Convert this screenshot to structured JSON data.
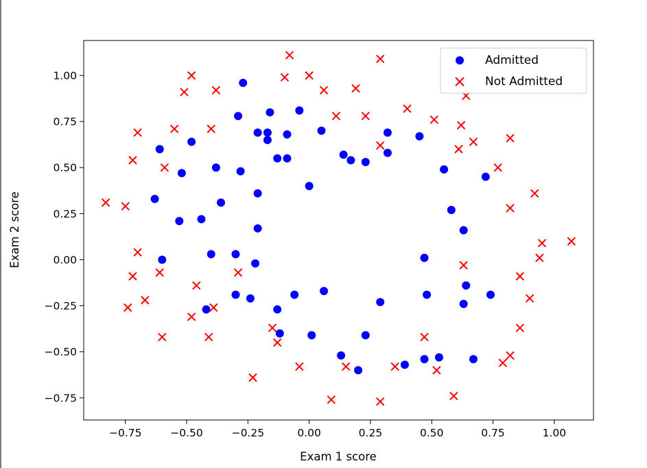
{
  "chart_data": {
    "type": "scatter",
    "title": "",
    "xlabel": "Exam 1 score",
    "ylabel": "Exam 2 score",
    "xlim": [
      -0.92,
      1.16
    ],
    "ylim": [
      -0.87,
      1.19
    ],
    "xticks": [
      -0.75,
      -0.5,
      -0.25,
      0.0,
      0.25,
      0.5,
      0.75,
      1.0
    ],
    "xtick_labels": [
      "−0.75",
      "−0.50",
      "−0.25",
      "0.00",
      "0.25",
      "0.50",
      "0.75",
      "1.00"
    ],
    "yticks": [
      -0.75,
      -0.5,
      -0.25,
      0.0,
      0.25,
      0.5,
      0.75,
      1.0
    ],
    "ytick_labels": [
      "−0.75",
      "−0.50",
      "−0.25",
      "0.00",
      "0.25",
      "0.50",
      "0.75",
      "1.00"
    ],
    "grid": false,
    "legend": "top-right",
    "series": [
      {
        "name": "Admitted",
        "marker": "circle",
        "color": "#0000ff",
        "points": [
          [
            -0.27,
            0.96
          ],
          [
            -0.29,
            0.78
          ],
          [
            -0.16,
            0.8
          ],
          [
            -0.21,
            0.69
          ],
          [
            -0.17,
            0.69
          ],
          [
            -0.09,
            0.68
          ],
          [
            -0.17,
            0.65
          ],
          [
            -0.04,
            0.81
          ],
          [
            0.05,
            0.7
          ],
          [
            -0.61,
            0.6
          ],
          [
            -0.48,
            0.64
          ],
          [
            -0.38,
            0.5
          ],
          [
            -0.28,
            0.48
          ],
          [
            -0.13,
            0.55
          ],
          [
            -0.09,
            0.55
          ],
          [
            0.14,
            0.57
          ],
          [
            0.17,
            0.54
          ],
          [
            0.23,
            0.53
          ],
          [
            0.32,
            0.69
          ],
          [
            0.32,
            0.58
          ],
          [
            0.45,
            0.67
          ],
          [
            0.55,
            0.49
          ],
          [
            0.72,
            0.45
          ],
          [
            -0.52,
            0.47
          ],
          [
            0.0,
            0.4
          ],
          [
            -0.63,
            0.33
          ],
          [
            -0.21,
            0.36
          ],
          [
            -0.36,
            0.31
          ],
          [
            -0.53,
            0.21
          ],
          [
            -0.44,
            0.22
          ],
          [
            -0.21,
            0.17
          ],
          [
            0.58,
            0.27
          ],
          [
            0.63,
            0.16
          ],
          [
            -0.6,
            0.0
          ],
          [
            -0.4,
            0.03
          ],
          [
            -0.3,
            0.03
          ],
          [
            -0.22,
            -0.02
          ],
          [
            0.47,
            0.01
          ],
          [
            0.64,
            -0.14
          ],
          [
            0.74,
            -0.19
          ],
          [
            -0.3,
            -0.19
          ],
          [
            -0.24,
            -0.21
          ],
          [
            -0.06,
            -0.19
          ],
          [
            0.06,
            -0.17
          ],
          [
            0.48,
            -0.19
          ],
          [
            0.29,
            -0.23
          ],
          [
            0.63,
            -0.24
          ],
          [
            -0.42,
            -0.27
          ],
          [
            -0.13,
            -0.27
          ],
          [
            -0.12,
            -0.4
          ],
          [
            0.01,
            -0.41
          ],
          [
            0.23,
            -0.41
          ],
          [
            0.13,
            -0.52
          ],
          [
            0.2,
            -0.6
          ],
          [
            0.39,
            -0.57
          ],
          [
            0.47,
            -0.54
          ],
          [
            0.53,
            -0.53
          ],
          [
            0.67,
            -0.54
          ]
        ]
      },
      {
        "name": "Not Admitted",
        "marker": "x",
        "color": "#ff0000",
        "points": [
          [
            -0.08,
            1.11
          ],
          [
            0.29,
            1.09
          ],
          [
            -0.48,
            1.0
          ],
          [
            -0.1,
            0.99
          ],
          [
            0.0,
            1.0
          ],
          [
            -0.51,
            0.91
          ],
          [
            -0.38,
            0.92
          ],
          [
            0.06,
            0.92
          ],
          [
            0.19,
            0.93
          ],
          [
            0.64,
            0.89
          ],
          [
            0.4,
            0.82
          ],
          [
            0.11,
            0.78
          ],
          [
            0.23,
            0.78
          ],
          [
            0.51,
            0.76
          ],
          [
            -0.55,
            0.71
          ],
          [
            -0.4,
            0.71
          ],
          [
            0.62,
            0.73
          ],
          [
            -0.7,
            0.69
          ],
          [
            0.82,
            0.66
          ],
          [
            0.29,
            0.62
          ],
          [
            0.67,
            0.64
          ],
          [
            0.61,
            0.6
          ],
          [
            -0.72,
            0.54
          ],
          [
            -0.59,
            0.5
          ],
          [
            0.77,
            0.5
          ],
          [
            -0.83,
            0.31
          ],
          [
            -0.75,
            0.29
          ],
          [
            0.92,
            0.36
          ],
          [
            0.82,
            0.28
          ],
          [
            1.07,
            0.1
          ],
          [
            0.95,
            0.09
          ],
          [
            -0.7,
            0.04
          ],
          [
            0.94,
            0.01
          ],
          [
            0.63,
            -0.03
          ],
          [
            -0.61,
            -0.07
          ],
          [
            -0.29,
            -0.07
          ],
          [
            -0.72,
            -0.09
          ],
          [
            0.86,
            -0.09
          ],
          [
            -0.46,
            -0.14
          ],
          [
            -0.67,
            -0.22
          ],
          [
            0.9,
            -0.21
          ],
          [
            -0.74,
            -0.26
          ],
          [
            -0.39,
            -0.26
          ],
          [
            -0.48,
            -0.31
          ],
          [
            -0.15,
            -0.37
          ],
          [
            0.86,
            -0.37
          ],
          [
            -0.41,
            -0.42
          ],
          [
            -0.6,
            -0.42
          ],
          [
            0.47,
            -0.42
          ],
          [
            -0.13,
            -0.45
          ],
          [
            0.82,
            -0.52
          ],
          [
            0.79,
            -0.56
          ],
          [
            -0.04,
            -0.58
          ],
          [
            0.15,
            -0.58
          ],
          [
            0.35,
            -0.58
          ],
          [
            0.52,
            -0.6
          ],
          [
            -0.23,
            -0.64
          ],
          [
            0.09,
            -0.76
          ],
          [
            0.29,
            -0.77
          ],
          [
            0.59,
            -0.74
          ]
        ]
      }
    ]
  }
}
